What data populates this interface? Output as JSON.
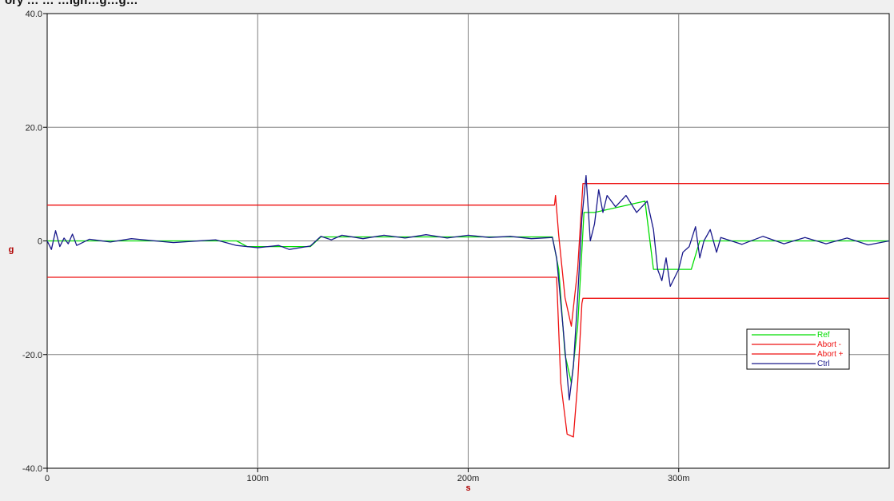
{
  "header": {
    "title": "ory … … …igh…g…g…"
  },
  "colors": {
    "plot_bg": "#ffffff",
    "grid": "#808080",
    "ref": "#00dd00",
    "abort_minus": "#ee1111",
    "abort_plus": "#ee1111",
    "ctrl": "#1a1a8c",
    "axis_label": "#b00000"
  },
  "chart_data": {
    "type": "line",
    "title": "",
    "xlabel": "s",
    "ylabel": "g",
    "xlim": [
      0,
      0.4
    ],
    "ylim": [
      -40,
      40
    ],
    "x_ticks": [
      {
        "value": 0,
        "label": "0"
      },
      {
        "value": 0.1,
        "label": "100m"
      },
      {
        "value": 0.2,
        "label": "200m"
      },
      {
        "value": 0.3,
        "label": "300m"
      }
    ],
    "y_ticks": [
      {
        "value": 40,
        "label": "40.0"
      },
      {
        "value": 20,
        "label": "20.0"
      },
      {
        "value": 0,
        "label": "0"
      },
      {
        "value": -20,
        "label": "-20.0"
      },
      {
        "value": -40,
        "label": "-40.0"
      }
    ],
    "grid": true,
    "legend_position": "bottom-right",
    "series": [
      {
        "name": "Ref",
        "color": "#00dd00",
        "x": [
          0,
          0.09,
          0.095,
          0.125,
          0.13,
          0.24,
          0.243,
          0.246,
          0.249,
          0.252,
          0.255,
          0.26,
          0.284,
          0.288,
          0.306,
          0.31,
          0.4
        ],
        "y": [
          0,
          0,
          -1,
          -1,
          0.7,
          0.7,
          -5,
          -20,
          -25,
          -15,
          5,
          5,
          7,
          -5,
          -5,
          0,
          0
        ]
      },
      {
        "name": "Abort  -",
        "color": "#ee1111",
        "x": [
          0,
          0.242,
          0.244,
          0.247,
          0.25,
          0.252,
          0.254,
          0.2545,
          0.4
        ],
        "y": [
          -6.4,
          -6.4,
          -25,
          -34,
          -34.5,
          -25,
          -11,
          -10.1,
          -10.1
        ]
      },
      {
        "name": "Abort  +",
        "color": "#ee1111",
        "x": [
          0,
          0.241,
          0.2415,
          0.243,
          0.246,
          0.249,
          0.252,
          0.2545,
          0.255,
          0.4
        ],
        "y": [
          6.3,
          6.3,
          8,
          1,
          -10,
          -15,
          -5,
          10.1,
          10.1,
          10.1
        ]
      },
      {
        "name": "Ctrl",
        "color": "#1a1a8c",
        "x": [
          0,
          0.002,
          0.004,
          0.006,
          0.008,
          0.01,
          0.012,
          0.014,
          0.02,
          0.03,
          0.04,
          0.06,
          0.08,
          0.09,
          0.1,
          0.11,
          0.115,
          0.125,
          0.13,
          0.135,
          0.14,
          0.15,
          0.16,
          0.17,
          0.18,
          0.19,
          0.2,
          0.21,
          0.22,
          0.23,
          0.24,
          0.242,
          0.245,
          0.248,
          0.25,
          0.252,
          0.254,
          0.256,
          0.258,
          0.26,
          0.262,
          0.264,
          0.266,
          0.27,
          0.275,
          0.28,
          0.285,
          0.288,
          0.29,
          0.292,
          0.294,
          0.296,
          0.3,
          0.302,
          0.305,
          0.308,
          0.31,
          0.312,
          0.315,
          0.318,
          0.32,
          0.33,
          0.34,
          0.35,
          0.36,
          0.37,
          0.38,
          0.39,
          0.4
        ],
        "y": [
          0,
          -1.5,
          1.8,
          -1,
          0.5,
          -0.5,
          1.2,
          -0.8,
          0.3,
          -0.2,
          0.4,
          -0.3,
          0.2,
          -0.8,
          -1.2,
          -0.8,
          -1.5,
          -0.9,
          0.8,
          0.2,
          1,
          0.4,
          1,
          0.5,
          1.1,
          0.5,
          1,
          0.6,
          0.8,
          0.4,
          0.6,
          -3,
          -15,
          -28,
          -22,
          -10,
          4,
          11.5,
          0,
          3,
          9,
          5,
          8,
          6,
          8,
          5,
          7,
          2,
          -5,
          -7,
          -3,
          -8,
          -5,
          -2,
          -1,
          2.5,
          -3,
          0,
          2,
          -2,
          0.6,
          -0.6,
          0.8,
          -0.5,
          0.6,
          -0.5,
          0.5,
          -0.7,
          0
        ]
      }
    ]
  }
}
